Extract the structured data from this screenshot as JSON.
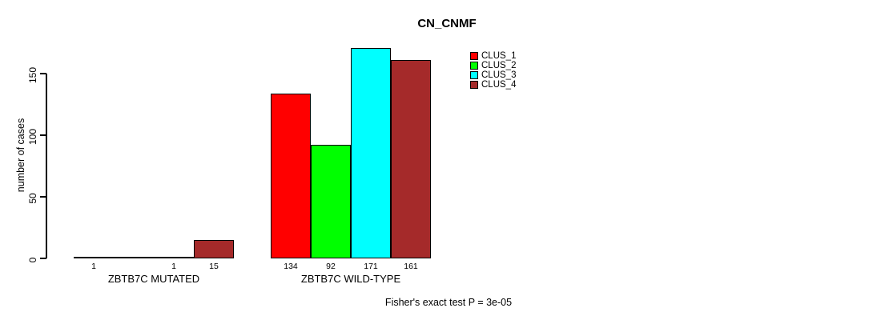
{
  "chart_data": {
    "type": "bar",
    "title": "CN_CNMF",
    "ylabel": "number of cases",
    "yticks": [
      0,
      50,
      100,
      150
    ],
    "ylim": [
      0,
      171
    ],
    "grid": false,
    "legend_position": "top-right-inside",
    "groups": [
      {
        "label": "ZBTB7C MUTATED",
        "values": [
          1,
          0,
          1,
          15
        ],
        "bar_labels": [
          "1",
          "",
          "1",
          "15"
        ]
      },
      {
        "label": "ZBTB7C WILD-TYPE",
        "values": [
          134,
          92,
          171,
          161
        ],
        "bar_labels": [
          "134",
          "92",
          "171",
          "161"
        ]
      }
    ],
    "series_colors": [
      "#FF0000",
      "#00FF00",
      "#00FFFF",
      "#A52A2A"
    ],
    "legend": [
      {
        "label": "CLUS_1",
        "color": "#FF0000"
      },
      {
        "label": "CLUS_2",
        "color": "#00FF00"
      },
      {
        "label": "CLUS_3",
        "color": "#00FFFF"
      },
      {
        "label": "CLUS_4",
        "color": "#A52A2A"
      }
    ],
    "footnote": "Fisher's exact test P = 3e-05"
  }
}
